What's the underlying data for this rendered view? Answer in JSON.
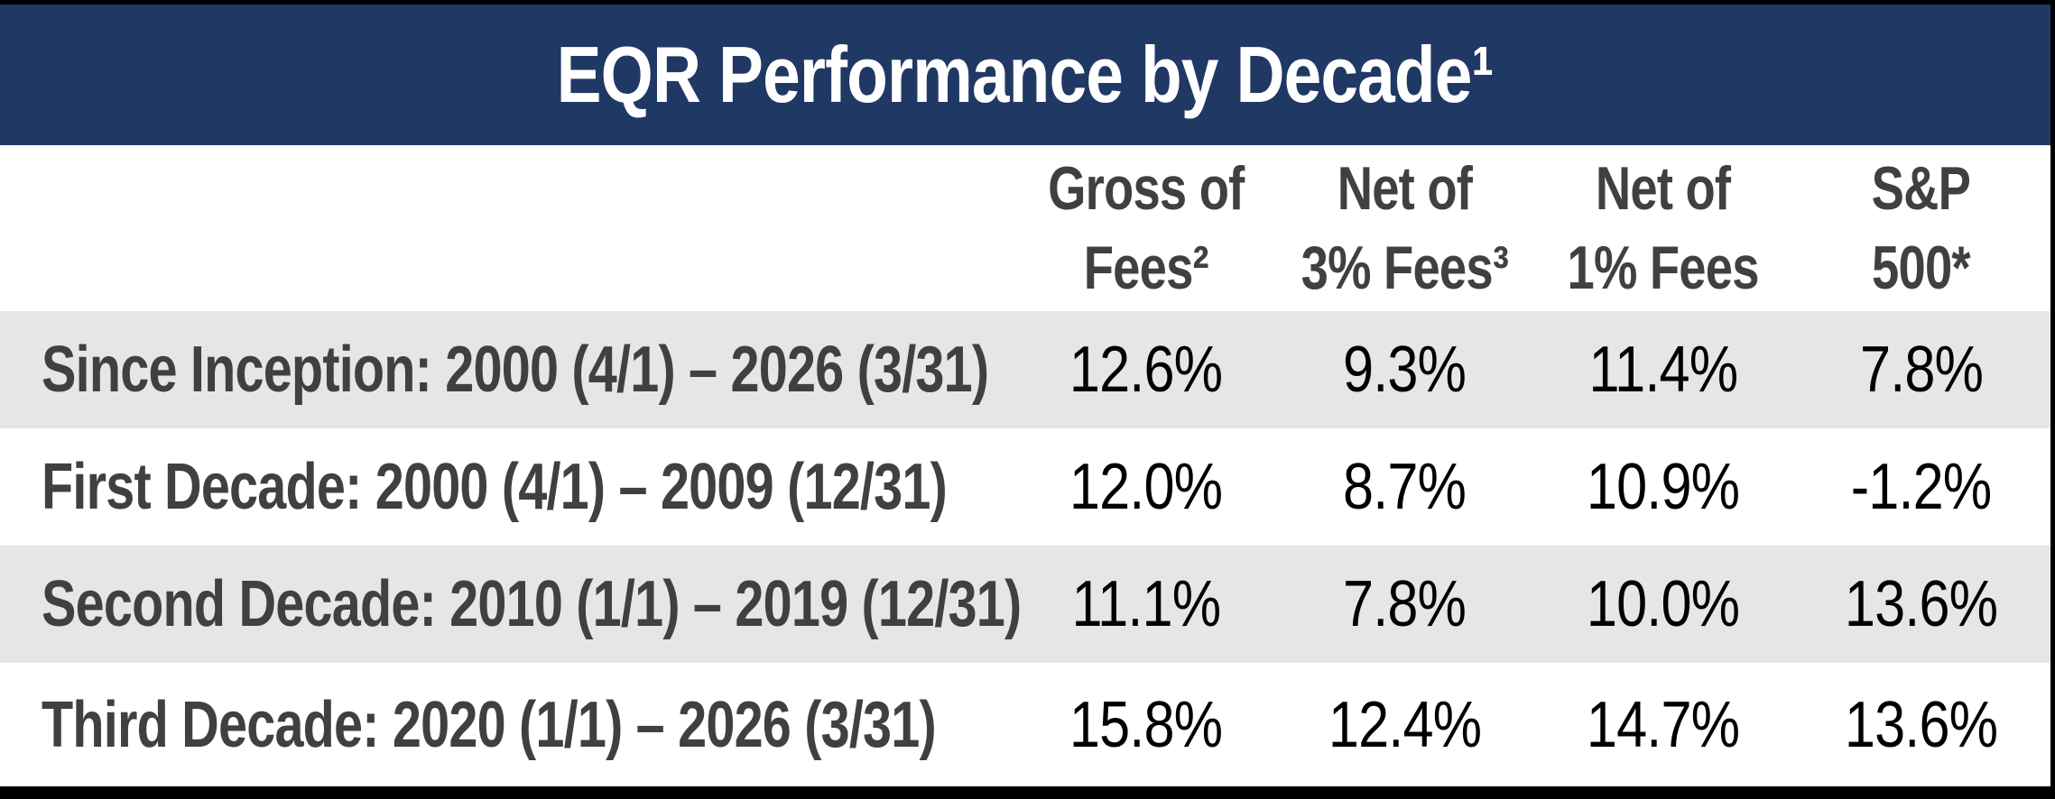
{
  "title": "EQR Performance by Decade¹",
  "columns": [
    {
      "line1": "Gross of",
      "line2": "Fees²"
    },
    {
      "line1": "Net of",
      "line2": "3% Fees³"
    },
    {
      "line1": "Net of",
      "line2": "1% Fees"
    },
    {
      "line1": "S&P",
      "line2": "500*"
    }
  ],
  "rows": [
    {
      "label": "Since Inception: 2000 (4/1) – 2026 (3/31)",
      "values": [
        "12.6%",
        "9.3%",
        "11.4%",
        "7.8%"
      ]
    },
    {
      "label": "First Decade: 2000 (4/1) – 2009 (12/31)",
      "values": [
        "12.0%",
        "8.7%",
        "10.9%",
        "-1.2%"
      ]
    },
    {
      "label": "Second Decade: 2010 (1/1) – 2019 (12/31)",
      "values": [
        "11.1%",
        "7.8%",
        "10.0%",
        "13.6%"
      ]
    },
    {
      "label": "Third Decade: 2020 (1/1) – 2026 (3/31)",
      "values": [
        "15.8%",
        "12.4%",
        "14.7%",
        "13.6%"
      ]
    }
  ],
  "colors": {
    "header_navy": "#203864",
    "row_alt_gray": "#E6E6E6",
    "heading_text": "#404040",
    "value_text": "#000000",
    "frame_black": "#000000"
  },
  "chart_data": {
    "type": "table",
    "title": "EQR Performance by Decade",
    "columns": [
      "Period",
      "Gross of Fees",
      "Net of 3% Fees",
      "Net of 1% Fees",
      "S&P 500"
    ],
    "rows": [
      {
        "period": "Since Inception: 2000 (4/1) – 2026 (3/31)",
        "gross_of_fees_pct": 12.6,
        "net_of_3pct_fees_pct": 9.3,
        "net_of_1pct_fees_pct": 11.4,
        "sp500_pct": 7.8
      },
      {
        "period": "First Decade: 2000 (4/1) – 2009 (12/31)",
        "gross_of_fees_pct": 12.0,
        "net_of_3pct_fees_pct": 8.7,
        "net_of_1pct_fees_pct": 10.9,
        "sp500_pct": -1.2
      },
      {
        "period": "Second Decade: 2010 (1/1) – 2019 (12/31)",
        "gross_of_fees_pct": 11.1,
        "net_of_3pct_fees_pct": 7.8,
        "net_of_1pct_fees_pct": 10.0,
        "sp500_pct": 13.6
      },
      {
        "period": "Third Decade: 2020 (1/1) – 2026 (3/31)",
        "gross_of_fees_pct": 15.8,
        "net_of_3pct_fees_pct": 12.4,
        "net_of_1pct_fees_pct": 14.7,
        "sp500_pct": 13.6
      }
    ]
  }
}
